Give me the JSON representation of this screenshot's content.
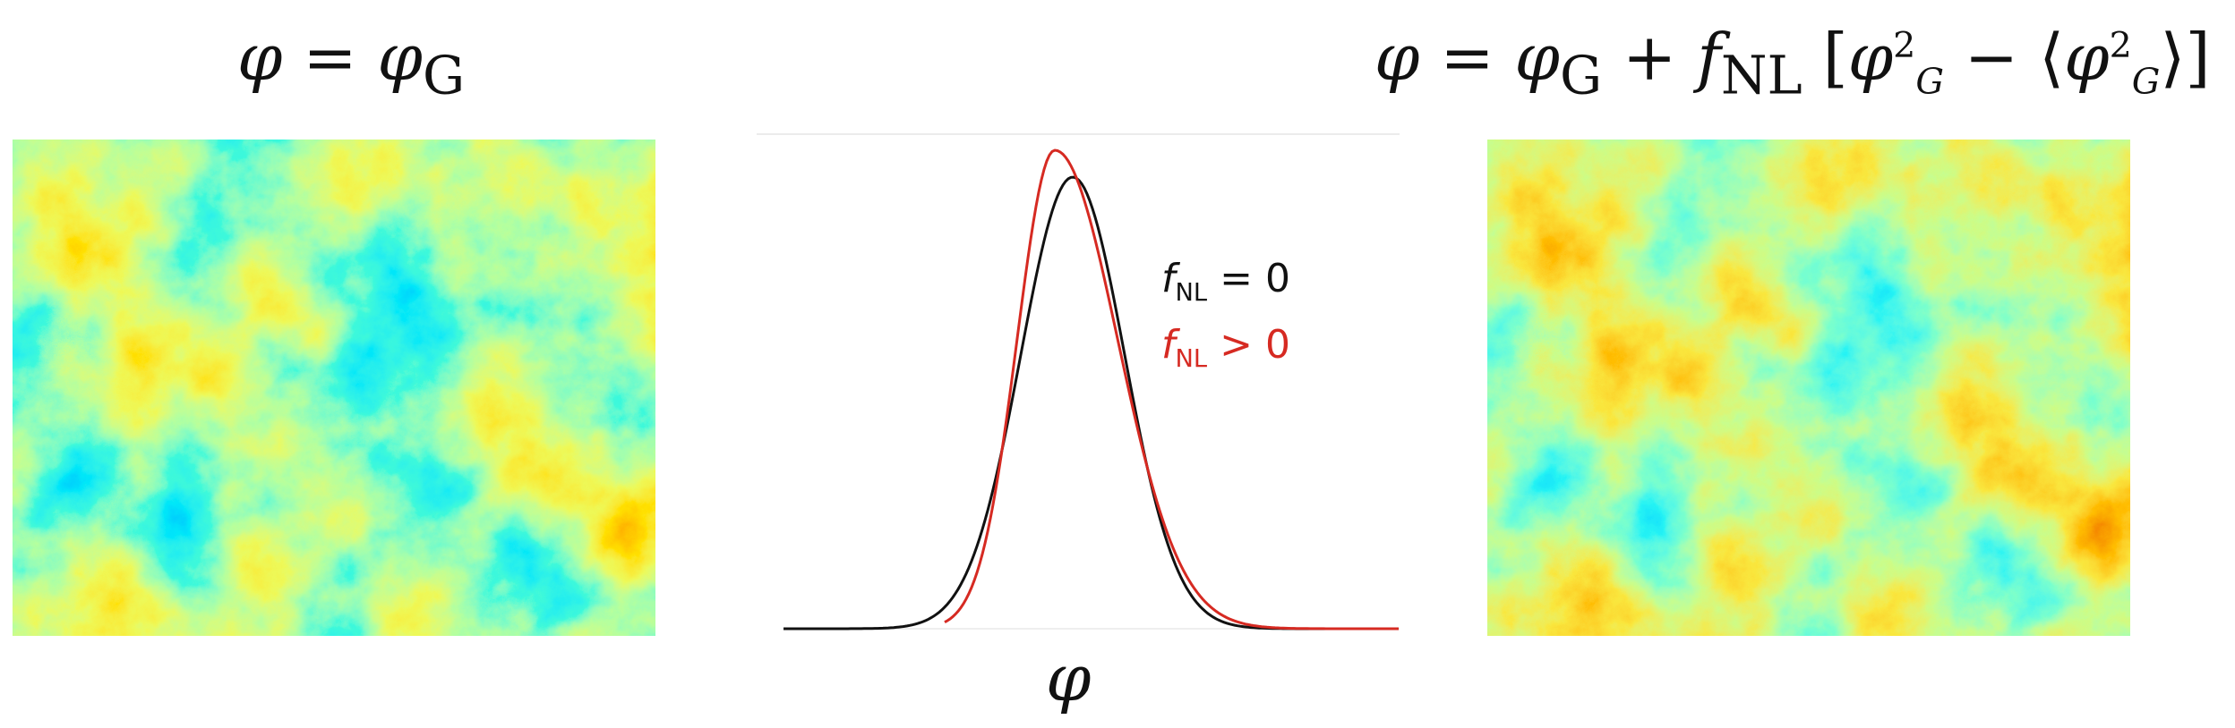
{
  "titles": {
    "left": {
      "lhs": "φ",
      "eq": "=",
      "rhs": "φ",
      "rhs_sub": "G"
    },
    "right": {
      "lhs": "φ",
      "eq": "=",
      "t1": "φ",
      "t1_sub": "G",
      "plus": "+",
      "f": "f",
      "f_sub": "NL",
      "lbr": "[",
      "sq1": "φ",
      "sq1_sup": "2",
      "sq1_sub": "G",
      "minus": "−",
      "langle": "⟨",
      "sq2": "φ",
      "sq2_sup": "2",
      "sq2_sub": "G",
      "rangle": "⟩",
      "rbr": "]"
    }
  },
  "legend": {
    "black": {
      "f": "f",
      "sub": "NL",
      "rel": "= 0"
    },
    "red": {
      "f": "f",
      "sub": "NL",
      "rel": "> 0"
    }
  },
  "xlabel": "φ",
  "colors": {
    "gaussian_curve": "#111111",
    "nongaussian_curve": "#d62a22",
    "colormap": "jet"
  },
  "maps": {
    "left_name": "gaussian-field-map",
    "right_name": "nongaussian-field-map"
  }
}
